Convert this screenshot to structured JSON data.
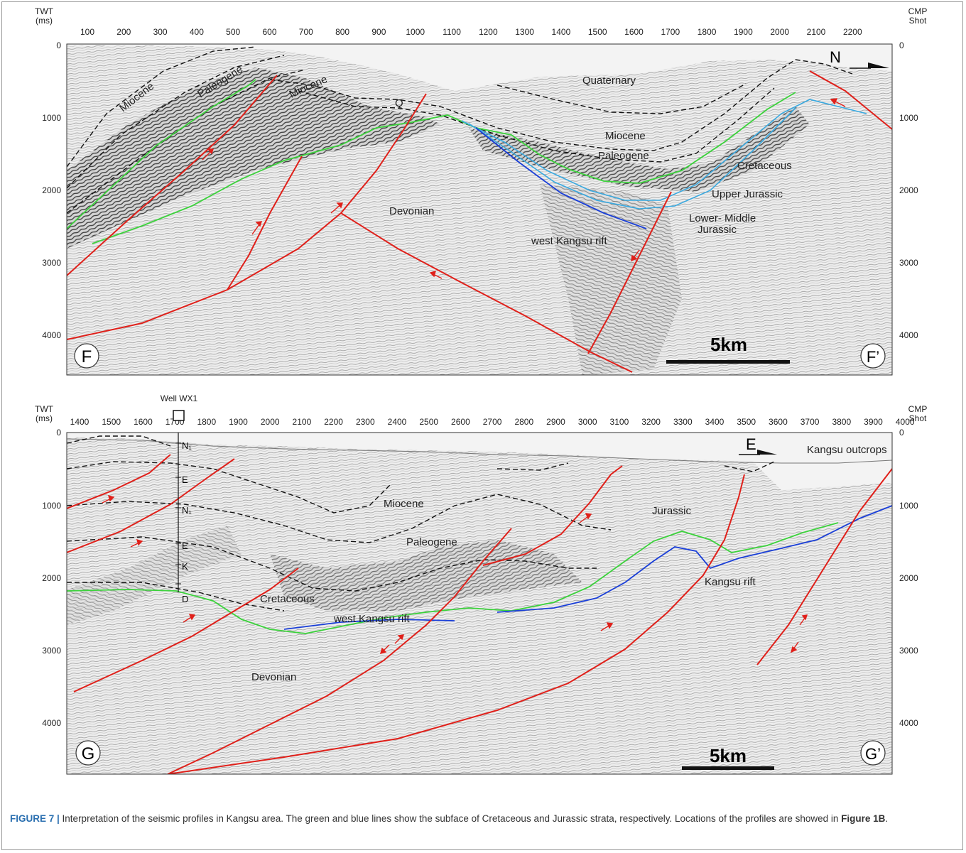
{
  "figure": {
    "caption_label": "FIGURE 7 |",
    "caption_text": " Interpretation of the seismic profiles in Kangsu area. The green and blue lines show the subface of Cretaceous and Jurassic strata, respectively. Locations of the profiles are showed in ",
    "caption_ref": "Figure 1B",
    "caption_end": "."
  },
  "colors": {
    "fault": "#e0201a",
    "cretaceous_base": "#3cd23c",
    "jurassic_base": "#1a3fd8",
    "jurassic_light": "#39a9e0",
    "caption_label": "#2a6fb0"
  },
  "panel_top": {
    "y_axis_label_1": "TWT",
    "y_axis_label_2": "(ms)",
    "x_axis_label_1": "CMP",
    "x_axis_label_2": "Shot",
    "x_ticks": [
      "100",
      "200",
      "300",
      "400",
      "500",
      "600",
      "700",
      "800",
      "900",
      "1000",
      "1100",
      "1200",
      "1300",
      "1400",
      "1500",
      "1600",
      "1700",
      "1800",
      "1900",
      "2000",
      "2100",
      "2200"
    ],
    "y_ticks": [
      "0",
      "1000",
      "2000",
      "3000",
      "4000"
    ],
    "labels": {
      "miocene_left": "Miocene",
      "paleogene_left": "Paleogene",
      "miocene_mid": "Miocene",
      "q": "Q",
      "quaternary": "Quaternary",
      "miocene_center": "Miocene",
      "paleogene_center": "Paleogene",
      "cretaceous": "Cretaceous",
      "upper_jurassic": "Upper Jurassic",
      "lower_middle_1": "Lower- Middle",
      "lower_middle_2": "Jurassic",
      "devonian": "Devonian",
      "west_kangsu_rift": "west Kangsu rift"
    },
    "north": "N",
    "scale": "5km",
    "corner_left": "F",
    "corner_right": "F’"
  },
  "panel_bottom": {
    "y_axis_label_1": "TWT",
    "y_axis_label_2": "(ms)",
    "x_axis_label_1": "CMP",
    "x_axis_label_2": "Shot",
    "well": "Well WX1",
    "x_ticks": [
      "1400",
      "1500",
      "1600",
      "1700",
      "1800",
      "1900",
      "2000",
      "2100",
      "2200",
      "2300",
      "2400",
      "2500",
      "2600",
      "2700",
      "2800",
      "2900",
      "3000",
      "3100",
      "3200",
      "3300",
      "3400",
      "3500",
      "3600",
      "3700",
      "3800",
      "3900",
      "4000"
    ],
    "y_ticks": [
      "0",
      "1000",
      "2000",
      "3000",
      "4000"
    ],
    "well_marks": [
      "N₁",
      "E",
      "N₁",
      "E",
      "K",
      "D"
    ],
    "labels": {
      "miocene": "Miocene",
      "paleogene": "Paleogene",
      "jurassic": "Jurassic",
      "cretaceous": "Cretaceous",
      "west_kangsu_rift": "west Kangsu rift",
      "kangsu_rift": "Kangsu rift",
      "devonian": "Devonian",
      "kangsu_outcrops": "Kangsu outcrops"
    },
    "east": "E",
    "scale": "5km",
    "corner_left": "G",
    "corner_right": "G’"
  }
}
